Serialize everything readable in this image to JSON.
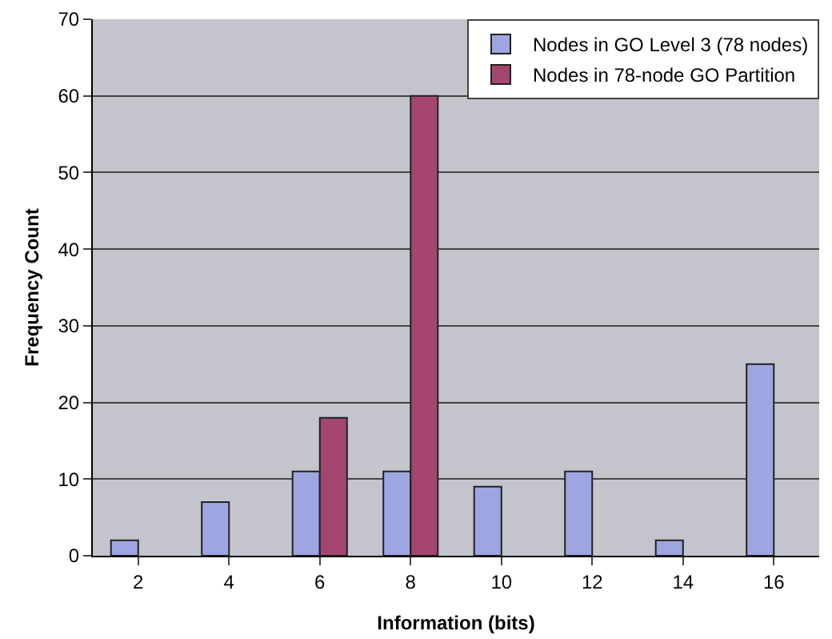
{
  "chart_data": {
    "type": "bar",
    "xlabel": "Information (bits)",
    "ylabel": "Frequency Count",
    "categories": [
      "2",
      "4",
      "6",
      "8",
      "10",
      "12",
      "14",
      "16"
    ],
    "series": [
      {
        "name": "Nodes in GO Level 3 (78 nodes)",
        "color": "#9da6e0",
        "values": [
          2,
          7,
          11,
          11,
          9,
          11,
          2,
          25
        ]
      },
      {
        "name": "Nodes in 78-node GO Partition",
        "color": "#a4466f",
        "values": [
          null,
          null,
          18,
          60,
          null,
          null,
          null,
          null
        ]
      }
    ],
    "ylim": [
      0,
      70
    ],
    "yticks": [
      0,
      10,
      20,
      30,
      40,
      50,
      60,
      70
    ],
    "grid": "y",
    "legend": "top right"
  }
}
